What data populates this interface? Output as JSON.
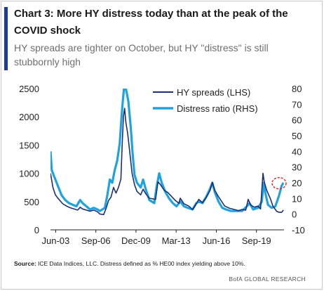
{
  "header": {
    "title": "Chart 3: More HY distress today than at the peak of the COVID shock",
    "subtitle": "HY spreads are tighter on October, but HY \"distress\" is still stubbornly high"
  },
  "footer": {
    "source_label": "Source:",
    "source_text": " ICE Data Indices, LLC. Distress defined as % HE00 index yielding above 10%.",
    "brand": "BofA GLOBAL RESEARCH"
  },
  "colors": {
    "hy_spreads": "#1c2f78",
    "distress_ratio": "#1fa3e0",
    "title_bar": "#1f3a93",
    "highlight_circle": "#e02020"
  },
  "chart_data": {
    "type": "line",
    "x": {
      "tick_labels": [
        "Jun-03",
        "Sep-06",
        "Dec-09",
        "Mar-13",
        "Jun-16",
        "Sep-19"
      ],
      "tick_years": [
        2003.42,
        2006.67,
        2009.92,
        2013.17,
        2016.42,
        2019.67
      ],
      "range": [
        2003.0,
        2021.9
      ]
    },
    "y_left": {
      "range": [
        0,
        2500
      ],
      "ticks": [
        0,
        500,
        1000,
        1500,
        2000,
        2500
      ]
    },
    "y_right": {
      "range": [
        -10,
        80
      ],
      "ticks": [
        -10,
        0,
        10,
        20,
        30,
        40,
        50,
        60,
        70,
        80
      ]
    },
    "legend_position": "top-right",
    "series": [
      {
        "name": "HY spreads (LHS)",
        "axis": "left",
        "points": [
          [
            2003.0,
            1000
          ],
          [
            2003.2,
            750
          ],
          [
            2003.4,
            620
          ],
          [
            2003.6,
            560
          ],
          [
            2003.8,
            510
          ],
          [
            2004.0,
            460
          ],
          [
            2004.3,
            420
          ],
          [
            2004.6,
            390
          ],
          [
            2004.9,
            370
          ],
          [
            2005.2,
            350
          ],
          [
            2005.4,
            400
          ],
          [
            2005.6,
            370
          ],
          [
            2005.9,
            350
          ],
          [
            2006.2,
            330
          ],
          [
            2006.5,
            350
          ],
          [
            2006.8,
            320
          ],
          [
            2007.0,
            280
          ],
          [
            2007.3,
            270
          ],
          [
            2007.5,
            380
          ],
          [
            2007.7,
            520
          ],
          [
            2007.9,
            580
          ],
          [
            2008.1,
            750
          ],
          [
            2008.3,
            650
          ],
          [
            2008.5,
            750
          ],
          [
            2008.7,
            900
          ],
          [
            2008.8,
            1500
          ],
          [
            2008.9,
            2000
          ],
          [
            2009.0,
            2150
          ],
          [
            2009.1,
            1900
          ],
          [
            2009.25,
            1700
          ],
          [
            2009.4,
            1400
          ],
          [
            2009.6,
            1000
          ],
          [
            2009.8,
            800
          ],
          [
            2010.0,
            680
          ],
          [
            2010.3,
            620
          ],
          [
            2010.5,
            720
          ],
          [
            2010.7,
            640
          ],
          [
            2011.0,
            560
          ],
          [
            2011.5,
            540
          ],
          [
            2011.7,
            850
          ],
          [
            2011.9,
            800
          ],
          [
            2012.2,
            700
          ],
          [
            2012.5,
            660
          ],
          [
            2012.8,
            590
          ],
          [
            2013.1,
            520
          ],
          [
            2013.4,
            470
          ],
          [
            2013.5,
            560
          ],
          [
            2013.8,
            460
          ],
          [
            2014.2,
            420
          ],
          [
            2014.5,
            360
          ],
          [
            2014.8,
            460
          ],
          [
            2015.0,
            540
          ],
          [
            2015.3,
            480
          ],
          [
            2015.6,
            570
          ],
          [
            2015.9,
            690
          ],
          [
            2016.1,
            840
          ],
          [
            2016.3,
            700
          ],
          [
            2016.5,
            620
          ],
          [
            2016.8,
            520
          ],
          [
            2017.1,
            420
          ],
          [
            2017.5,
            380
          ],
          [
            2017.9,
            360
          ],
          [
            2018.2,
            340
          ],
          [
            2018.5,
            360
          ],
          [
            2018.8,
            350
          ],
          [
            2019.0,
            540
          ],
          [
            2019.2,
            440
          ],
          [
            2019.5,
            400
          ],
          [
            2019.8,
            420
          ],
          [
            2020.0,
            370
          ],
          [
            2020.2,
            1000
          ],
          [
            2020.3,
            850
          ],
          [
            2020.5,
            700
          ],
          [
            2020.8,
            550
          ],
          [
            2021.0,
            420
          ],
          [
            2021.3,
            330
          ],
          [
            2021.5,
            310
          ],
          [
            2021.7,
            310
          ],
          [
            2021.85,
            350
          ]
        ]
      },
      {
        "name": "Distress ratio (RHS)",
        "axis": "right",
        "points": [
          [
            2003.0,
            40
          ],
          [
            2003.1,
            28
          ],
          [
            2003.3,
            24
          ],
          [
            2003.5,
            20
          ],
          [
            2003.7,
            16
          ],
          [
            2003.9,
            12
          ],
          [
            2004.2,
            9
          ],
          [
            2004.5,
            7
          ],
          [
            2004.8,
            6
          ],
          [
            2005.1,
            5
          ],
          [
            2005.4,
            9
          ],
          [
            2005.6,
            7
          ],
          [
            2005.9,
            5
          ],
          [
            2006.2,
            3
          ],
          [
            2006.5,
            4
          ],
          [
            2006.8,
            3
          ],
          [
            2007.0,
            2
          ],
          [
            2007.4,
            4
          ],
          [
            2007.6,
            12
          ],
          [
            2007.8,
            22
          ],
          [
            2008.0,
            20
          ],
          [
            2008.2,
            28
          ],
          [
            2008.4,
            34
          ],
          [
            2008.6,
            45
          ],
          [
            2008.75,
            62
          ],
          [
            2008.85,
            72
          ],
          [
            2008.95,
            80
          ],
          [
            2009.05,
            82
          ],
          [
            2009.15,
            78
          ],
          [
            2009.3,
            72
          ],
          [
            2009.5,
            55
          ],
          [
            2009.65,
            38
          ],
          [
            2009.8,
            25
          ],
          [
            2010.0,
            20
          ],
          [
            2010.3,
            17
          ],
          [
            2010.5,
            22
          ],
          [
            2010.7,
            16
          ],
          [
            2011.0,
            9
          ],
          [
            2011.4,
            7
          ],
          [
            2011.6,
            18
          ],
          [
            2011.8,
            26
          ],
          [
            2012.0,
            20
          ],
          [
            2012.3,
            14
          ],
          [
            2012.6,
            10
          ],
          [
            2012.9,
            7
          ],
          [
            2013.2,
            5
          ],
          [
            2013.5,
            8
          ],
          [
            2013.8,
            5
          ],
          [
            2014.1,
            4
          ],
          [
            2014.5,
            3
          ],
          [
            2014.8,
            7
          ],
          [
            2015.0,
            8
          ],
          [
            2015.3,
            7
          ],
          [
            2015.6,
            11
          ],
          [
            2015.9,
            16
          ],
          [
            2016.1,
            20
          ],
          [
            2016.3,
            14
          ],
          [
            2016.6,
            8
          ],
          [
            2016.9,
            4
          ],
          [
            2017.2,
            3
          ],
          [
            2017.6,
            2
          ],
          [
            2018.0,
            2
          ],
          [
            2018.5,
            2
          ],
          [
            2018.9,
            5
          ],
          [
            2019.1,
            7
          ],
          [
            2019.4,
            3
          ],
          [
            2019.8,
            4
          ],
          [
            2020.1,
            8
          ],
          [
            2020.25,
            20
          ],
          [
            2020.4,
            13
          ],
          [
            2020.6,
            6
          ],
          [
            2020.9,
            4
          ],
          [
            2021.2,
            5
          ],
          [
            2021.5,
            12
          ],
          [
            2021.7,
            18
          ],
          [
            2021.85,
            20
          ]
        ]
      }
    ],
    "annotation": {
      "type": "circle",
      "x": 2021.5,
      "y_right": 17,
      "style": "dashed",
      "color": "#e02020"
    }
  }
}
